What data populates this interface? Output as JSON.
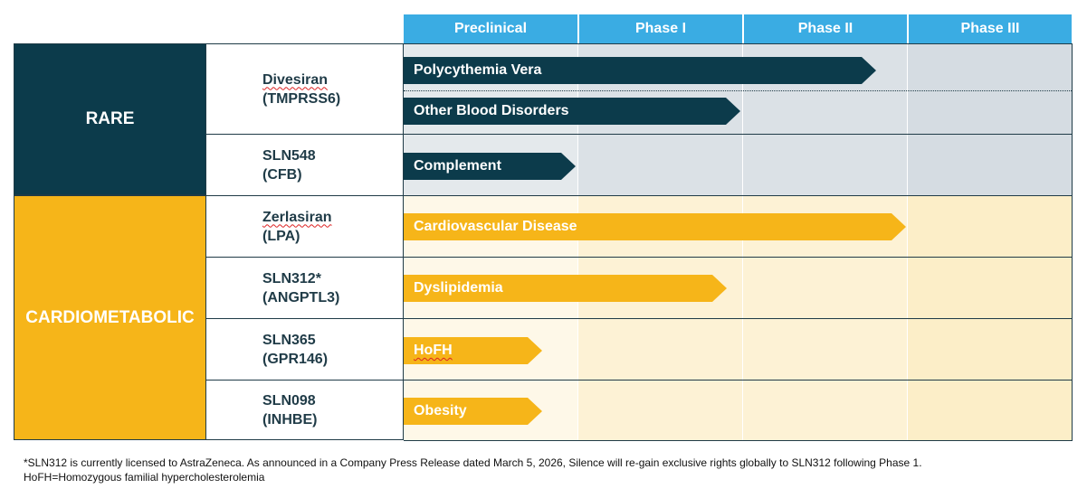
{
  "phases": [
    "Preclinical",
    "Phase I",
    "Phase II",
    "Phase III"
  ],
  "categories": {
    "rare": "RARE",
    "cardiometabolic": "CARDIOMETABOLIC"
  },
  "drugs": [
    {
      "name": "Divesiran",
      "target": "(TMPRSS6)"
    },
    {
      "name": "SLN548",
      "target": "(CFB)"
    },
    {
      "name": "Zerlasiran",
      "target": "(LPA)"
    },
    {
      "name": "SLN312*",
      "target": "(ANGPTL3)"
    },
    {
      "name": "SLN365",
      "target": "(GPR146)"
    },
    {
      "name": "SLN098",
      "target": "(INHBE)"
    }
  ],
  "programs": [
    {
      "label": "Polycythemia Vera",
      "drug": "Divesiran",
      "stage": "Phase II",
      "color": "#0c3b4b"
    },
    {
      "label": "Other Blood Disorders",
      "drug": "Divesiran",
      "stage": "Phase I",
      "color": "#0c3b4b"
    },
    {
      "label": "Complement",
      "drug": "SLN548",
      "stage": "Preclinical",
      "color": "#0c3b4b"
    },
    {
      "label": "Cardiovascular Disease",
      "drug": "Zerlasiran",
      "stage": "Phase II",
      "color": "#f6b519"
    },
    {
      "label": "Dyslipidemia",
      "drug": "SLN312*",
      "stage": "Phase I",
      "color": "#f6b519"
    },
    {
      "label": "HoFH",
      "drug": "SLN365",
      "stage": "Preclinical",
      "color": "#f6b519"
    },
    {
      "label": "Obesity",
      "drug": "SLN098",
      "stage": "Preclinical",
      "color": "#f6b519"
    }
  ],
  "colors": {
    "header_blue": "#3aace3",
    "rare_navy": "#0c3b4b",
    "cardio_gold": "#f6b519"
  },
  "footnote": {
    "line1": "*SLN312 is currently licensed to AstraZeneca. As announced in a Company Press Release dated March 5, 2026, Silence will re-gain exclusive rights globally to SLN312 following Phase 1.",
    "line2": "HoFH=Homozygous familial hypercholesterolemia"
  }
}
